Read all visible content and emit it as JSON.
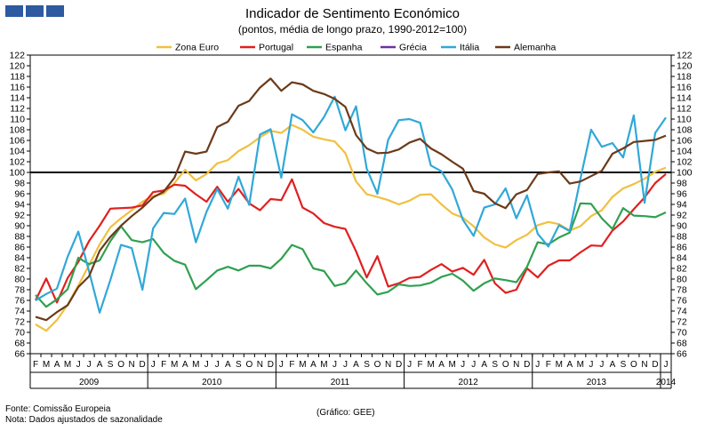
{
  "header": {
    "title": "Indicador de Sentimento Económico",
    "subtitle": "(pontos, média de longo prazo, 1990-2012=100)"
  },
  "footer": {
    "source": "Fonte: Comissão Europeia",
    "note": "Nota: Dados ajustados de sazonalidade",
    "credit": "(Gráfico: GEE)"
  },
  "chart_data": {
    "type": "line",
    "title": "Indicador de Sentimento Económico",
    "subtitle": "(pontos, média de longo prazo, 1990-2012=100)",
    "ylim": [
      66,
      122
    ],
    "ytick_step": 2,
    "reference_line": 100,
    "legend_position": "top",
    "month_labels": [
      "F",
      "M",
      "A",
      "M",
      "J",
      "J",
      "A",
      "S",
      "O",
      "N",
      "D",
      "J",
      "F",
      "M",
      "A",
      "M",
      "J",
      "J",
      "A",
      "S",
      "O",
      "N",
      "D",
      "J",
      "F",
      "M",
      "A",
      "M",
      "J",
      "J",
      "A",
      "S",
      "O",
      "N",
      "D",
      "J",
      "F",
      "M",
      "A",
      "M",
      "J",
      "J",
      "A",
      "S",
      "O",
      "N",
      "D",
      "J",
      "F",
      "M",
      "A",
      "M",
      "J",
      "J",
      "A",
      "S",
      "O",
      "N",
      "D",
      "J"
    ],
    "years": [
      {
        "label": "2009",
        "start": 0,
        "end": 11
      },
      {
        "label": "2010",
        "start": 11,
        "end": 23
      },
      {
        "label": "2011",
        "start": 23,
        "end": 35
      },
      {
        "label": "2012",
        "start": 35,
        "end": 47
      },
      {
        "label": "2013",
        "start": 47,
        "end": 59
      },
      {
        "label": "2014",
        "start": 59,
        "end": 60
      }
    ],
    "series": [
      {
        "name": "Zona Euro",
        "color": "#f0c040",
        "values": [
          71.5,
          70.3,
          72.3,
          75.2,
          78.8,
          82.6,
          86.5,
          89.7,
          91.4,
          92.9,
          94.5,
          95.6,
          96.0,
          98.0,
          100.5,
          98.5,
          99.7,
          101.7,
          102.3,
          104.0,
          105.1,
          106.6,
          107.8,
          107.4,
          108.9,
          108.0,
          106.7,
          106.2,
          105.8,
          103.6,
          98.3,
          95.9,
          95.4,
          94.8,
          94.0,
          94.7,
          95.8,
          95.9,
          94.0,
          92.3,
          91.5,
          89.9,
          87.8,
          86.5,
          85.9,
          87.3,
          88.3,
          90.1,
          90.7,
          90.3,
          89.1,
          89.9,
          91.8,
          92.9,
          95.4,
          97.0,
          97.8,
          98.8,
          100.1,
          100.9
        ]
      },
      {
        "name": "Portugal",
        "color": "#e02020",
        "values": [
          76.0,
          80.1,
          75.6,
          80.2,
          83.2,
          87.1,
          90.0,
          93.2,
          93.3,
          93.4,
          93.8,
          96.3,
          96.6,
          97.7,
          97.5,
          95.9,
          94.5,
          97.3,
          94.5,
          96.9,
          94.2,
          92.9,
          95.0,
          94.8,
          98.7,
          93.4,
          92.3,
          90.5,
          89.8,
          89.4,
          85.2,
          80.3,
          84.3,
          78.6,
          79.2,
          80.2,
          80.4,
          81.7,
          82.8,
          81.4,
          82.1,
          80.8,
          83.6,
          79.2,
          77.4,
          78.0,
          82.0,
          80.3,
          82.5,
          83.5,
          83.5,
          85.0,
          86.3,
          86.2,
          89.1,
          90.8,
          93.1,
          95.3,
          98.0,
          99.7
        ]
      },
      {
        "name": "Espanha",
        "color": "#30a050",
        "values": [
          77.0,
          74.8,
          76.2,
          78.1,
          84.0,
          82.8,
          83.5,
          87.1,
          89.9,
          87.3,
          86.9,
          87.5,
          84.9,
          83.4,
          82.7,
          78.1,
          79.8,
          81.6,
          82.3,
          81.6,
          82.5,
          82.5,
          82.0,
          83.8,
          86.4,
          85.6,
          82.0,
          81.5,
          78.7,
          79.2,
          81.6,
          79.2,
          77.1,
          77.6,
          79.0,
          78.7,
          78.8,
          79.3,
          80.4,
          81.0,
          79.7,
          77.8,
          79.2,
          80.1,
          79.8,
          79.4,
          82.3,
          86.9,
          86.5,
          87.8,
          88.7,
          94.2,
          94.1,
          91.4,
          89.4,
          93.3,
          91.9,
          91.8,
          91.6,
          92.5
        ]
      },
      {
        "name": "Grécia",
        "color": "#7030a0",
        "values": []
      },
      {
        "name": "Itália",
        "color": "#30a8d8",
        "values": [
          76.0,
          77.2,
          78.2,
          84.2,
          88.9,
          81.5,
          73.7,
          79.8,
          86.4,
          85.8,
          78.0,
          89.5,
          92.4,
          92.2,
          95.1,
          86.9,
          92.6,
          96.9,
          93.2,
          99.2,
          93.9,
          107.1,
          108.1,
          99.0,
          110.9,
          109.8,
          107.5,
          110.4,
          114.2,
          107.9,
          112.4,
          100.7,
          96.0,
          106.1,
          109.8,
          110.0,
          109.3,
          101.3,
          100.2,
          96.8,
          91.1,
          88.1,
          93.4,
          94.0,
          97.0,
          91.4,
          95.7,
          88.5,
          86.1,
          90.1,
          89.0,
          98.8,
          108.0,
          104.8,
          105.5,
          102.8,
          110.7,
          94.3,
          107.4,
          110.3
        ]
      },
      {
        "name": "Alemanha",
        "color": "#6b3a1a",
        "values": [
          72.9,
          72.3,
          73.8,
          75.1,
          78.5,
          80.5,
          85.3,
          87.9,
          90.0,
          91.8,
          93.4,
          95.3,
          96.4,
          99.0,
          103.9,
          103.5,
          103.9,
          108.5,
          109.5,
          112.5,
          113.4,
          115.9,
          117.6,
          115.3,
          116.9,
          116.5,
          115.3,
          114.7,
          113.8,
          112.3,
          107.0,
          104.5,
          103.6,
          103.7,
          104.3,
          105.6,
          106.3,
          104.5,
          103.4,
          102.0,
          100.7,
          96.5,
          96.0,
          94.2,
          93.3,
          95.9,
          96.7,
          99.7,
          100.0,
          100.2,
          97.9,
          98.3,
          99.3,
          100.3,
          103.5,
          104.5,
          105.7,
          105.9,
          106.1,
          106.9
        ]
      }
    ]
  }
}
